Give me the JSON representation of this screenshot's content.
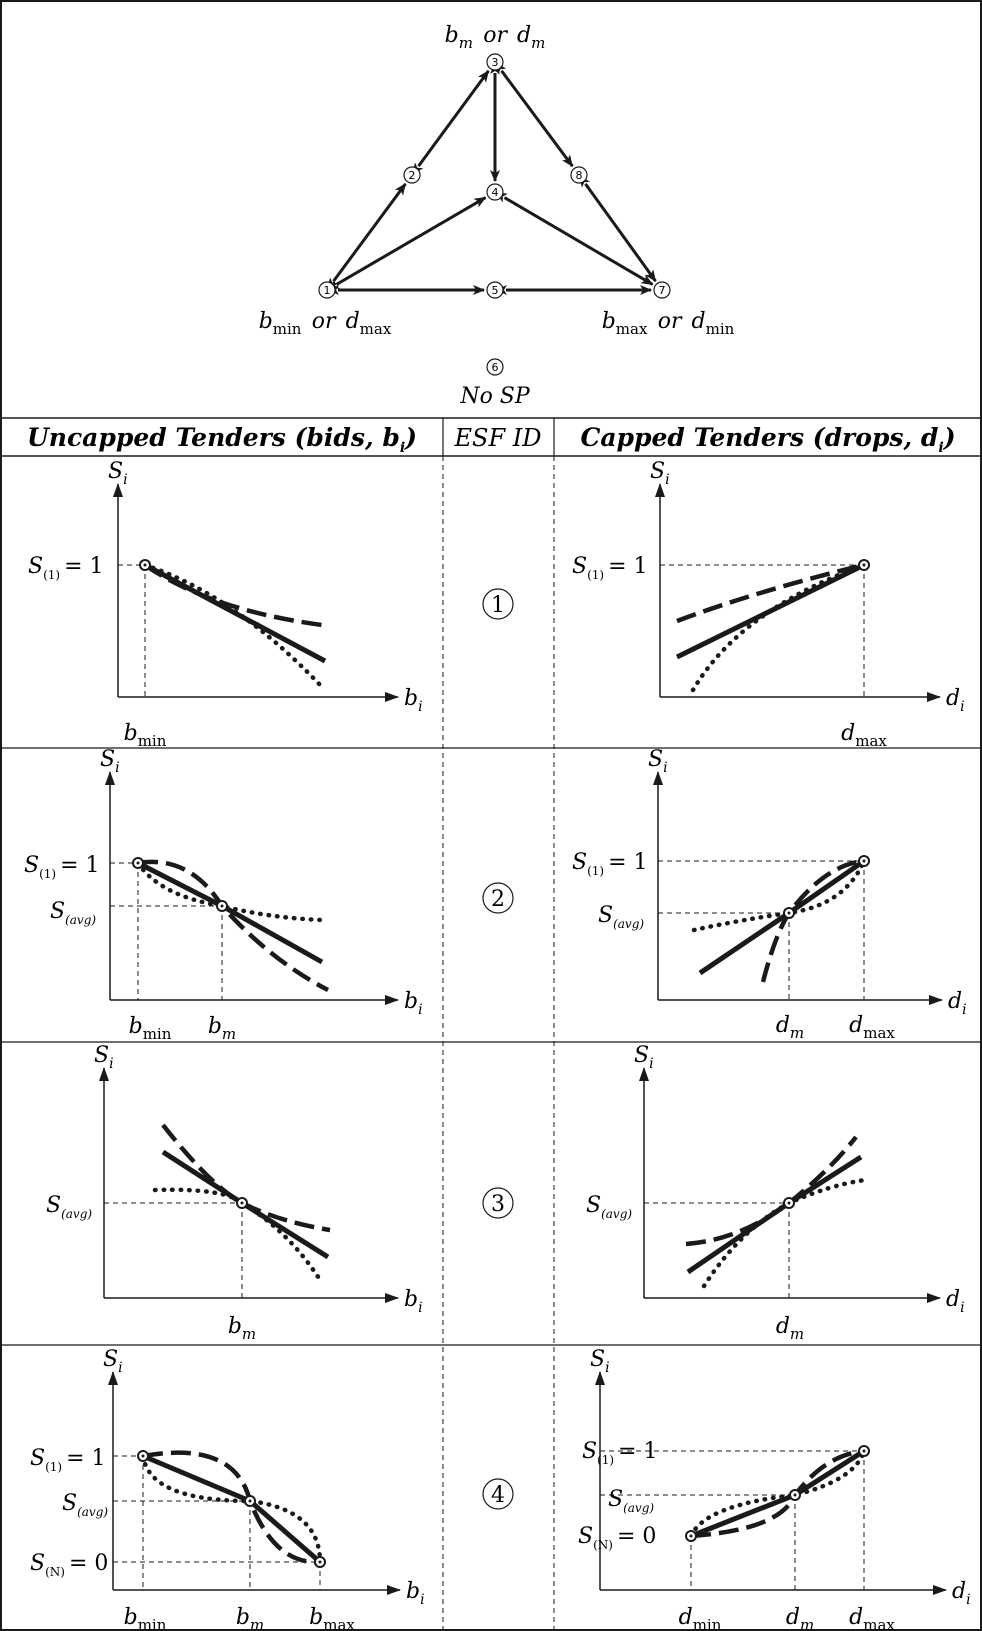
{
  "triangle": {
    "nodes": [
      {
        "id": "1",
        "label": "bmin or dmax",
        "parts": [
          [
            "b",
            "min"
          ],
          [
            "or",
            ""
          ],
          [
            "d",
            "max"
          ]
        ]
      },
      {
        "id": "2"
      },
      {
        "id": "3",
        "label": "bm or dm",
        "parts": [
          [
            "b",
            "m"
          ],
          [
            "or",
            ""
          ],
          [
            "d",
            "m"
          ]
        ]
      },
      {
        "id": "4"
      },
      {
        "id": "5"
      },
      {
        "id": "6",
        "label": "No SP"
      },
      {
        "id": "7",
        "label": "bmax or dmin",
        "parts": [
          [
            "b",
            "max"
          ],
          [
            "or",
            ""
          ],
          [
            "d",
            "min"
          ]
        ]
      },
      {
        "id": "8"
      }
    ],
    "edges": [
      [
        "1",
        "2"
      ],
      [
        "2",
        "3"
      ],
      [
        "3",
        "4"
      ],
      [
        "3",
        "8"
      ],
      [
        "8",
        "7"
      ],
      [
        "1",
        "4"
      ],
      [
        "4",
        "7"
      ],
      [
        "1",
        "5"
      ],
      [
        "5",
        "7"
      ]
    ]
  },
  "headers": {
    "uncapped": "Uncapped Tenders (bids, b",
    "uncapped_sub": "i",
    "uncapped_close": ")",
    "esf_id": "ESF ID",
    "capped": "Capped Tenders (drops, d",
    "capped_sub": "i",
    "capped_close": ")"
  },
  "rows": [
    {
      "esf_id": "1",
      "uncapped": {
        "y_axis": "S",
        "y_axis_sub": "i",
        "x_axis": "b",
        "x_axis_sub": "i",
        "y_ticks": [
          {
            "text": "S",
            "sub": "(1)",
            "eq": "= 1"
          }
        ],
        "x_ticks": [
          {
            "text": "b",
            "sub": "min"
          }
        ]
      },
      "capped": {
        "y_axis": "S",
        "y_axis_sub": "i",
        "x_axis": "d",
        "x_axis_sub": "i",
        "y_ticks": [
          {
            "text": "S",
            "sub": "(1)",
            "eq": "= 1"
          }
        ],
        "x_ticks": [
          {
            "text": "d",
            "sub": "max"
          }
        ]
      }
    },
    {
      "esf_id": "2",
      "uncapped": {
        "y_axis": "S",
        "y_axis_sub": "i",
        "x_axis": "b",
        "x_axis_sub": "i",
        "y_ticks": [
          {
            "text": "S",
            "sub": "(1)",
            "eq": "= 1"
          },
          {
            "text": "S",
            "sub": "(avg)",
            "eq": ""
          }
        ],
        "x_ticks": [
          {
            "text": "b",
            "sub": "min"
          },
          {
            "text": "b",
            "sub": "m"
          }
        ]
      },
      "capped": {
        "y_axis": "S",
        "y_axis_sub": "i",
        "x_axis": "d",
        "x_axis_sub": "i",
        "y_ticks": [
          {
            "text": "S",
            "sub": "(1)",
            "eq": "= 1"
          },
          {
            "text": "S",
            "sub": "(avg)",
            "eq": ""
          }
        ],
        "x_ticks": [
          {
            "text": "d",
            "sub": "m"
          },
          {
            "text": "d",
            "sub": "max"
          }
        ]
      }
    },
    {
      "esf_id": "3",
      "uncapped": {
        "y_axis": "S",
        "y_axis_sub": "i",
        "x_axis": "b",
        "x_axis_sub": "i",
        "y_ticks": [
          {
            "text": "S",
            "sub": "(avg)",
            "eq": ""
          }
        ],
        "x_ticks": [
          {
            "text": "b",
            "sub": "m"
          }
        ]
      },
      "capped": {
        "y_axis": "S",
        "y_axis_sub": "i",
        "x_axis": "d",
        "x_axis_sub": "i",
        "y_ticks": [
          {
            "text": "S",
            "sub": "(avg)",
            "eq": ""
          }
        ],
        "x_ticks": [
          {
            "text": "d",
            "sub": "m"
          }
        ]
      }
    },
    {
      "esf_id": "4",
      "uncapped": {
        "y_axis": "S",
        "y_axis_sub": "i",
        "x_axis": "b",
        "x_axis_sub": "i",
        "y_ticks": [
          {
            "text": "S",
            "sub": "(1)",
            "eq": "= 1"
          },
          {
            "text": "S",
            "sub": "(avg)",
            "eq": ""
          },
          {
            "text": "S",
            "sub": "(N)",
            "eq": "= 0"
          }
        ],
        "x_ticks": [
          {
            "text": "b",
            "sub": "min"
          },
          {
            "text": "b",
            "sub": "m"
          },
          {
            "text": "b",
            "sub": "max"
          }
        ]
      },
      "capped": {
        "y_axis": "S",
        "y_axis_sub": "i",
        "x_axis": "d",
        "x_axis_sub": "i",
        "y_ticks": [
          {
            "text": "S",
            "sub": "(1)",
            "eq": "= 1"
          },
          {
            "text": "S",
            "sub": "(avg)",
            "eq": ""
          },
          {
            "text": "S",
            "sub": "(N)",
            "eq": "= 0"
          }
        ],
        "x_ticks": [
          {
            "text": "d",
            "sub": "min"
          },
          {
            "text": "d",
            "sub": "m"
          },
          {
            "text": "d",
            "sub": "max"
          }
        ]
      }
    }
  ]
}
